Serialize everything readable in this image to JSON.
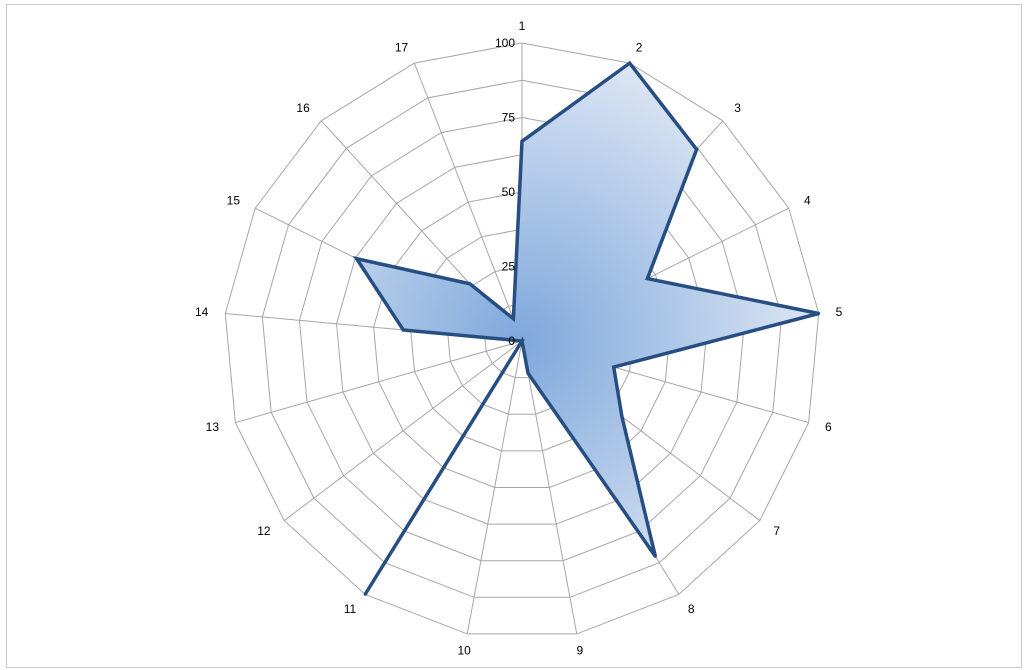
{
  "chart_data": {
    "type": "radar",
    "title": "",
    "categories": [
      "1",
      "2",
      "3",
      "4",
      "5",
      "6",
      "7",
      "8",
      "9",
      "10",
      "11",
      "12",
      "13",
      "14",
      "15",
      "16",
      "17"
    ],
    "series": [
      {
        "values": [
          67,
          100,
          87,
          47,
          100,
          32,
          42,
          85,
          11,
          0,
          100,
          0,
          0,
          40,
          62,
          26,
          8
        ]
      }
    ],
    "rlim": [
      0,
      100
    ],
    "ticks": [
      "0",
      "25",
      "50",
      "75",
      "100"
    ],
    "grid": true,
    "legend": "none",
    "colors": {
      "line": "#264e82",
      "fill_center": "#7fa8dc",
      "fill_edge": "#dde6f4",
      "grid": "#a6a6a6"
    }
  }
}
